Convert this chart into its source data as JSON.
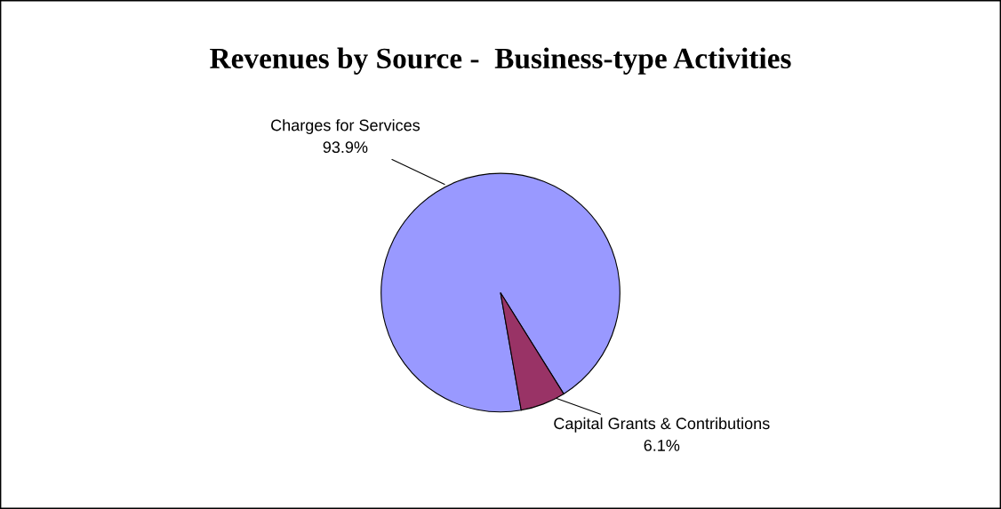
{
  "chart_data": {
    "type": "pie",
    "title": "Revenues by Source -  Business-type Activities",
    "categories": [
      "Charges for Services",
      "Capital Grants & Contributions"
    ],
    "values": [
      93.9,
      6.1
    ],
    "colors": [
      "#9999ff",
      "#993366"
    ],
    "value_labels": [
      "93.9%",
      "6.1%"
    ]
  }
}
